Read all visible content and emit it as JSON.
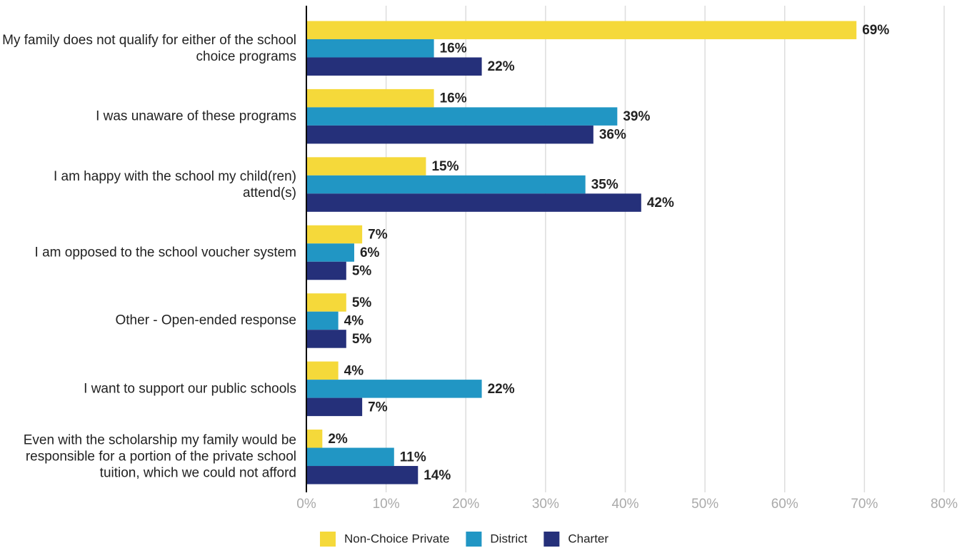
{
  "chart_data": {
    "type": "bar",
    "orientation": "horizontal",
    "categories": [
      "My family does not qualify for either of the school choice programs",
      "I was unaware of these programs",
      "I am happy with the school my child(ren) attend(s)",
      "I am opposed to the school voucher system",
      "Other - Open-ended response",
      "I want to support our public schools",
      "Even with the scholarship my family would be responsible for a portion of the private school tuition, which we could not afford"
    ],
    "series": [
      {
        "name": "Non-Choice Private",
        "color": "#f5d93a",
        "values": [
          69,
          16,
          15,
          7,
          5,
          4,
          2
        ],
        "value_labels": [
          "69%",
          "16%",
          "15%",
          "7%",
          "5%",
          "4%",
          "2%"
        ]
      },
      {
        "name": "District",
        "color": "#2196c4",
        "values": [
          16,
          39,
          35,
          6,
          4,
          22,
          11
        ],
        "value_labels": [
          "16%",
          "39%",
          "35%",
          "6%",
          "4%",
          "22%",
          "11%"
        ]
      },
      {
        "name": "Charter",
        "color": "#25307a",
        "values": [
          22,
          36,
          42,
          5,
          5,
          7,
          14
        ],
        "value_labels": [
          "22%",
          "36%",
          "42%",
          "5%",
          "5%",
          "7%",
          "14%"
        ]
      }
    ],
    "xlim": [
      0,
      80
    ],
    "xticks": [
      {
        "value": 0,
        "label": "0%"
      },
      {
        "value": 10,
        "label": "10%"
      },
      {
        "value": 20,
        "label": "20%"
      },
      {
        "value": 30,
        "label": "30%"
      },
      {
        "value": 40,
        "label": "40%"
      },
      {
        "value": 50,
        "label": "50%"
      },
      {
        "value": 60,
        "label": "60%"
      },
      {
        "value": 70,
        "label": "70%"
      },
      {
        "value": 80,
        "label": "80%"
      }
    ],
    "grid": true,
    "legend": "bottom"
  }
}
